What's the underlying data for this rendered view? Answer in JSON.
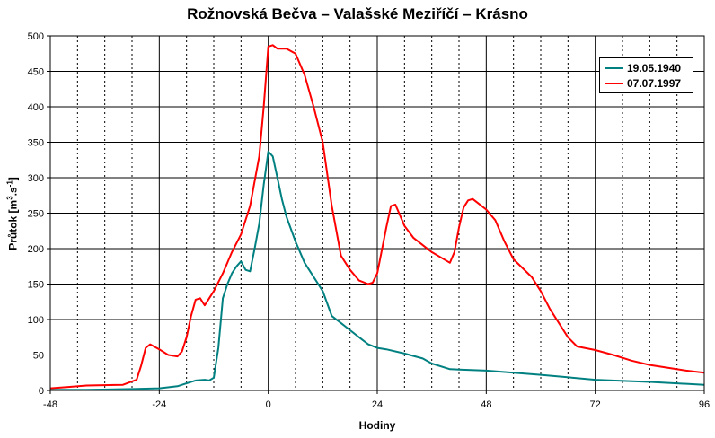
{
  "chart_data": {
    "type": "line",
    "title": "Rožnovská Bečva – Valašské Meziříčí – Krásno",
    "xlabel": "Hodiny",
    "ylabel": "Průtok [m3.s-1]",
    "ylabel_parts": {
      "a": "Průtok [m",
      "b": "3",
      "c": ".s",
      "d": "-1",
      "e": "]"
    },
    "xlim": [
      -48,
      96
    ],
    "ylim": [
      0,
      500
    ],
    "xticks": [
      -48,
      -24,
      0,
      24,
      48,
      72,
      96
    ],
    "xtick_labels": [
      "-48",
      "-24",
      "0",
      "24",
      "48",
      "72",
      "96"
    ],
    "yticks": [
      0,
      50,
      100,
      150,
      200,
      250,
      300,
      350,
      400,
      450,
      500
    ],
    "ytick_labels": [
      "0",
      "50",
      "100",
      "150",
      "200",
      "250",
      "300",
      "350",
      "400",
      "450",
      "500"
    ],
    "grid": "vertical dotted every 6 h, solid at major ticks; horizontal solid every 50",
    "legend_position": "top-right",
    "series": [
      {
        "name": "19.05.1940",
        "color": "#008080",
        "x": [
          -48,
          -40,
          -30,
          -24,
          -20,
          -18,
          -16,
          -14,
          -13,
          -12,
          -11,
          -10,
          -9,
          -8,
          -7,
          -6,
          -5,
          -4,
          -3,
          -2,
          -1,
          0,
          1,
          2,
          3,
          4,
          6,
          8,
          10,
          12,
          14,
          16,
          18,
          20,
          22,
          24,
          26,
          30,
          34,
          36,
          40,
          48,
          60,
          72,
          84,
          96
        ],
        "values": [
          1,
          1,
          2,
          3,
          6,
          10,
          14,
          15,
          14,
          18,
          60,
          130,
          150,
          165,
          175,
          182,
          170,
          168,
          200,
          235,
          290,
          337,
          330,
          300,
          270,
          245,
          210,
          180,
          160,
          140,
          105,
          95,
          85,
          75,
          65,
          60,
          58,
          52,
          45,
          38,
          30,
          28,
          22,
          15,
          12,
          8
        ]
      },
      {
        "name": "07.07.1997",
        "color": "#FF0000",
        "x": [
          -48,
          -44,
          -40,
          -32,
          -29,
          -28,
          -27,
          -26,
          -24,
          -22,
          -20,
          -19,
          -18,
          -17,
          -16,
          -15,
          -14,
          -12,
          -10,
          -8,
          -6,
          -4,
          -2,
          -1,
          0,
          1,
          2,
          4,
          6,
          8,
          10,
          12,
          14,
          16,
          18,
          20,
          22,
          23,
          24,
          26,
          27,
          28,
          30,
          32,
          36,
          40,
          41,
          42,
          43,
          44,
          45,
          46,
          48,
          50,
          52,
          54,
          58,
          60,
          62,
          64,
          66,
          68,
          72,
          76,
          80,
          84,
          88,
          92,
          96
        ],
        "values": [
          3,
          5,
          7,
          8,
          15,
          35,
          60,
          65,
          58,
          50,
          48,
          55,
          75,
          105,
          128,
          130,
          120,
          140,
          165,
          195,
          220,
          260,
          330,
          400,
          485,
          487,
          482,
          482,
          475,
          445,
          400,
          350,
          260,
          190,
          170,
          155,
          150,
          152,
          165,
          230,
          260,
          262,
          232,
          215,
          195,
          180,
          195,
          230,
          258,
          268,
          270,
          265,
          255,
          240,
          210,
          185,
          160,
          140,
          115,
          95,
          75,
          62,
          57,
          50,
          42,
          36,
          32,
          28,
          25
        ]
      }
    ]
  }
}
